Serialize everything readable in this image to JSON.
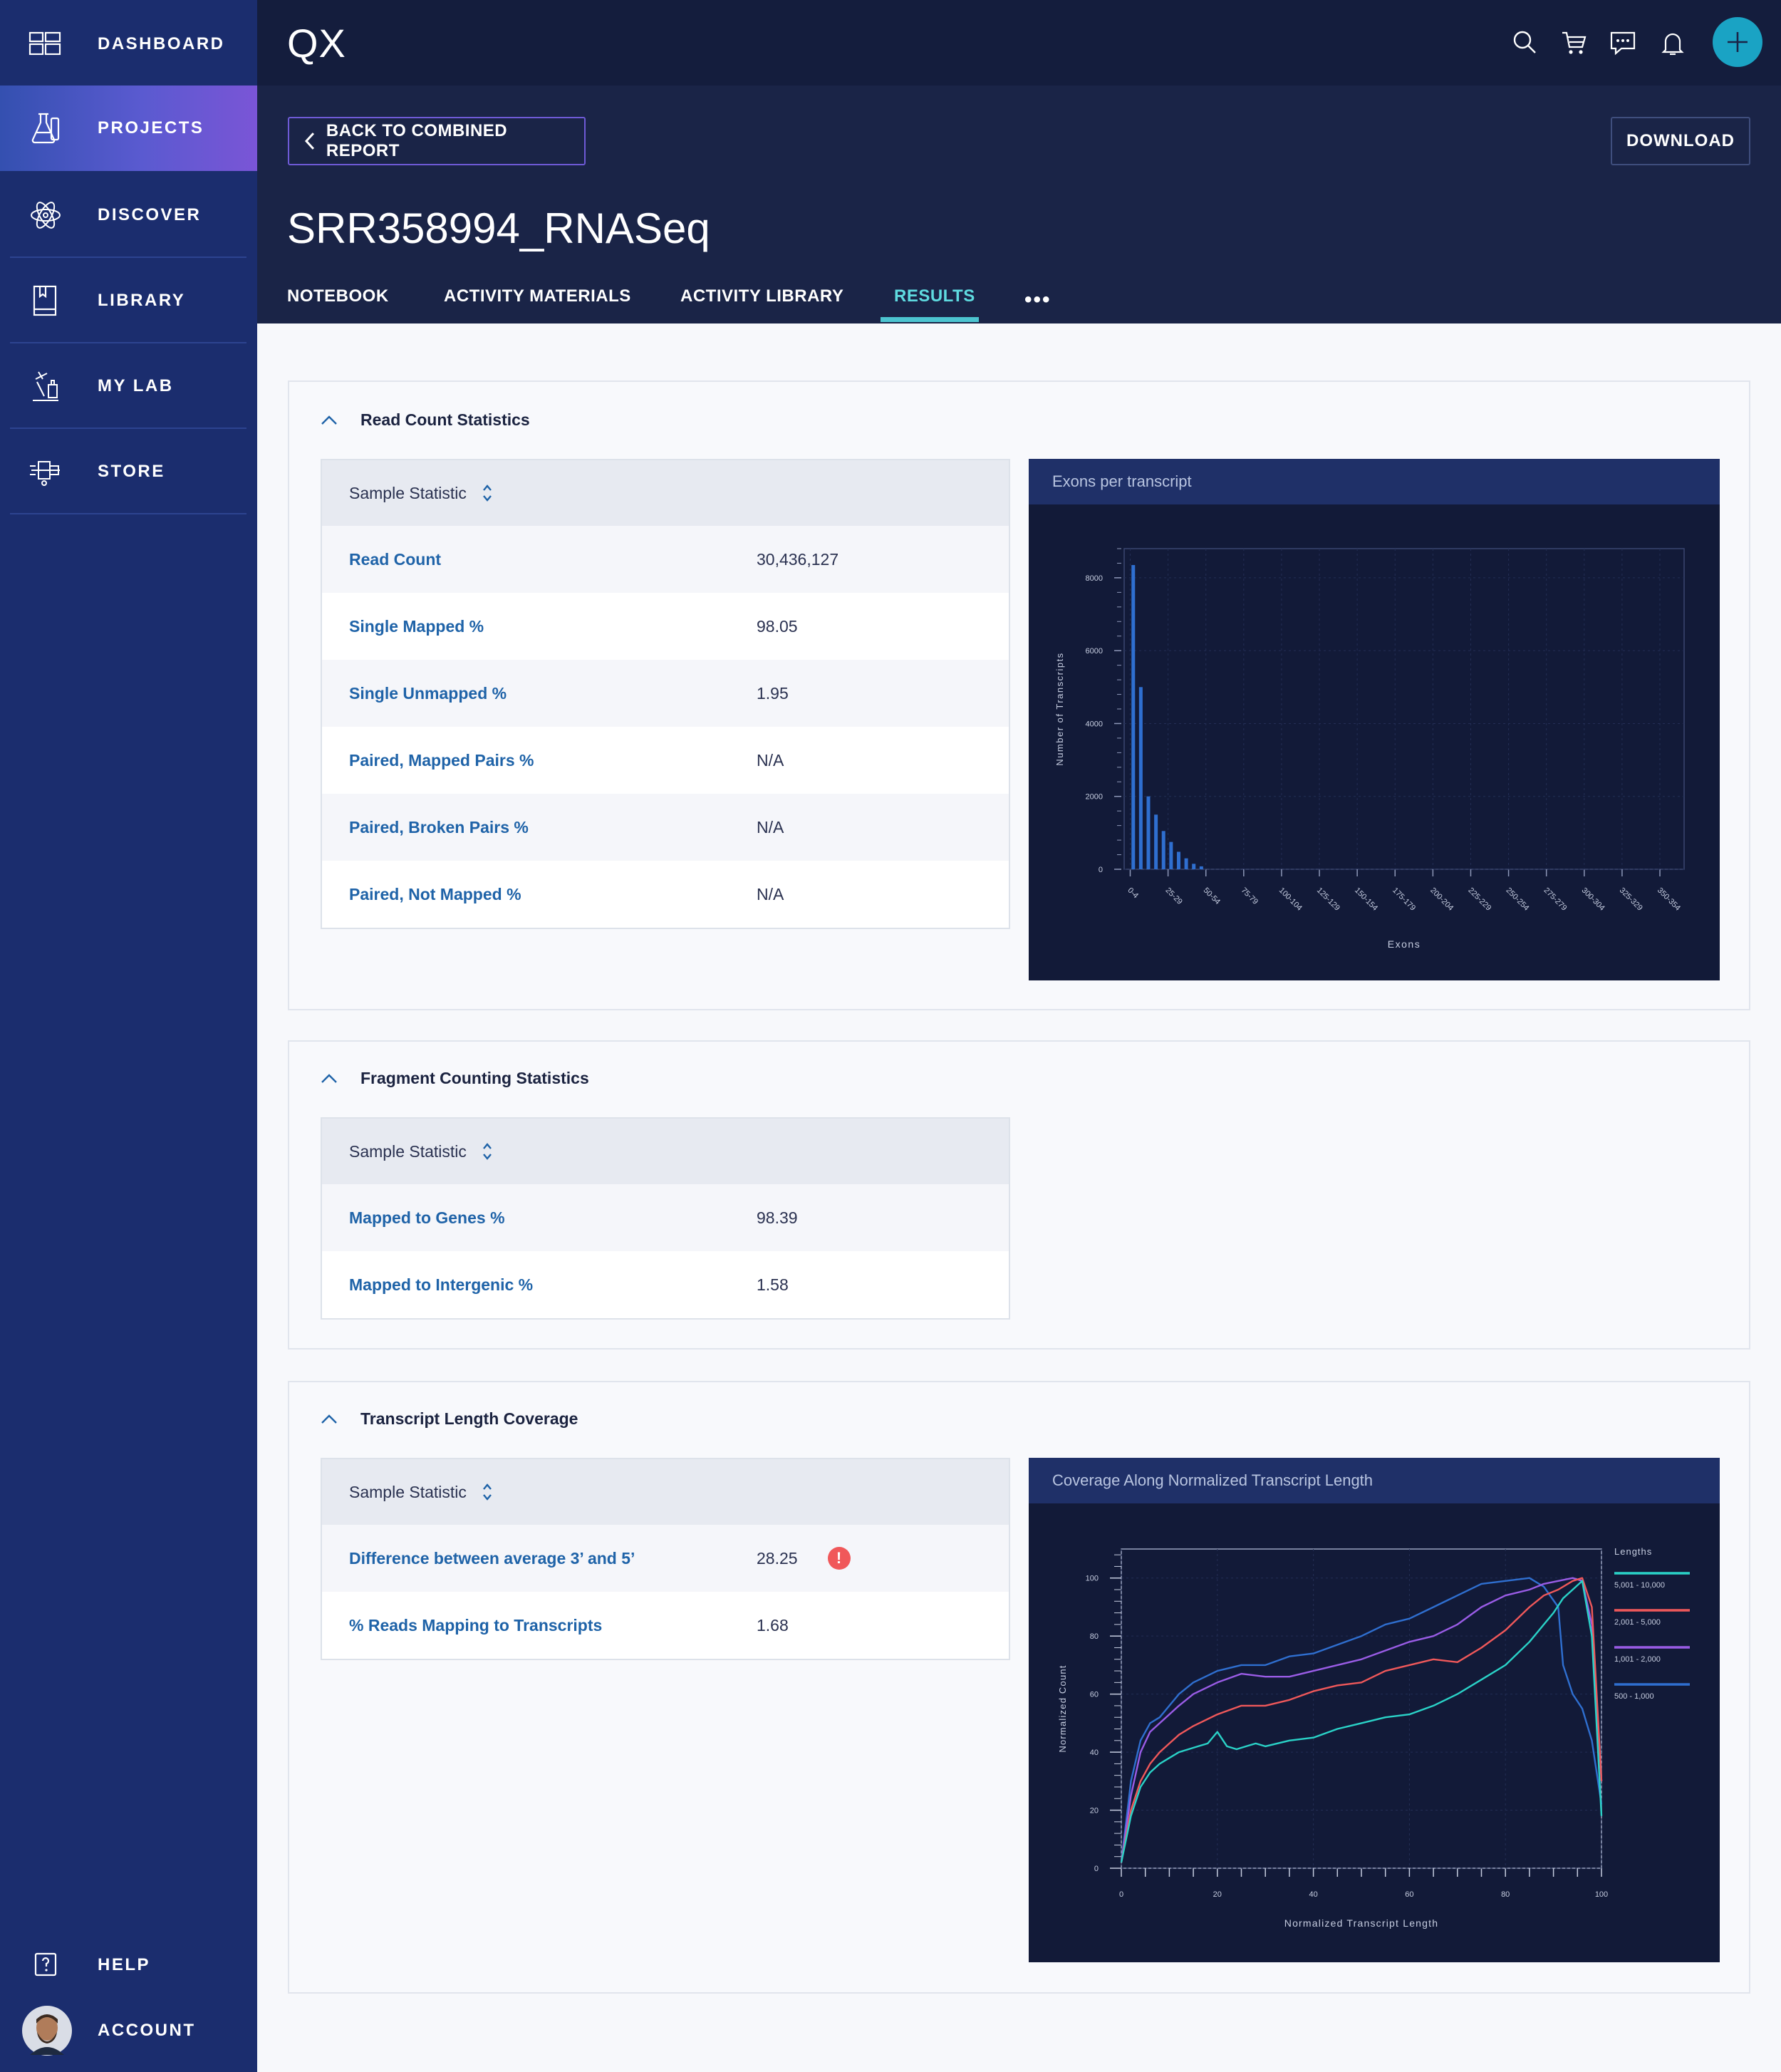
{
  "sidebar": {
    "items": [
      {
        "label": "DASHBOARD",
        "icon": "dashboard-icon",
        "active": false
      },
      {
        "label": "PROJECTS",
        "icon": "flask-icon",
        "active": true
      },
      {
        "label": "DISCOVER",
        "icon": "atom-icon",
        "active": false
      },
      {
        "label": "LIBRARY",
        "icon": "book-icon",
        "active": false
      },
      {
        "label": "MY LAB",
        "icon": "lab-equipment-icon",
        "active": false
      },
      {
        "label": "STORE",
        "icon": "store-icon",
        "active": false
      }
    ],
    "help_label": "HELP",
    "account_label": "ACCOUNT"
  },
  "header": {
    "logo": "QX",
    "icons": [
      "search-icon",
      "cart-icon",
      "chat-icon",
      "bell-icon",
      "plus-icon"
    ]
  },
  "page": {
    "back_label": "BACK TO COMBINED REPORT",
    "download_label": "DOWNLOAD",
    "title": "SRR358994_RNASeq",
    "tabs": [
      {
        "label": "NOTEBOOK",
        "active": false
      },
      {
        "label": "ACTIVITY MATERIALS",
        "active": false
      },
      {
        "label": "ACTIVITY LIBRARY",
        "active": false
      },
      {
        "label": "RESULTS",
        "active": true
      }
    ],
    "more": "•••"
  },
  "sections": [
    {
      "title": "Read Count Statistics",
      "header": "Sample Statistic",
      "rows": [
        {
          "label": "Read Count",
          "value": "30,436,127"
        },
        {
          "label": "Single Mapped %",
          "value": "98.05"
        },
        {
          "label": "Single Unmapped %",
          "value": "1.95"
        },
        {
          "label": "Paired, Mapped Pairs %",
          "value": "N/A"
        },
        {
          "label": "Paired, Broken Pairs %",
          "value": "N/A"
        },
        {
          "label": "Paired, Not Mapped %",
          "value": "N/A"
        }
      ]
    },
    {
      "title": "Fragment Counting Statistics",
      "header": "Sample Statistic",
      "rows": [
        {
          "label": "Mapped to Genes %",
          "value": "98.39"
        },
        {
          "label": "Mapped to Intergenic %",
          "value": "1.58"
        }
      ]
    },
    {
      "title": "Transcript Length Coverage",
      "header": "Sample Statistic",
      "rows": [
        {
          "label": "Difference between average 3’ and 5’",
          "value": "28.25",
          "warning": "!"
        },
        {
          "label": "% Reads Mapping to Transcripts",
          "value": "1.68"
        }
      ]
    }
  ],
  "chart_data": [
    {
      "type": "bar",
      "title": "Exons per transcript",
      "xlabel": "Exons",
      "ylabel": "Number of Transcripts",
      "ylim": [
        0,
        8800
      ],
      "yticks": [
        0,
        2000,
        4000,
        6000,
        8000
      ],
      "tick_labels": [
        "0-4",
        "25-29",
        "50-54",
        "75-79",
        "100-104",
        "125-129",
        "150-154",
        "175-179",
        "200-204",
        "225-229",
        "250-254",
        "275-279",
        "300-304",
        "325-329",
        "350-354"
      ],
      "bar_x": [
        2,
        7,
        12,
        17,
        22,
        27,
        32,
        37,
        42,
        47
      ],
      "values": [
        8350,
        5000,
        2000,
        1500,
        1050,
        750,
        480,
        300,
        150,
        80
      ],
      "xlim": [
        -4,
        366
      ],
      "bar_color": "#2f6fd0"
    },
    {
      "type": "line",
      "title": "Coverage Along Normalized Transcript Length",
      "xlabel": "Normalized Transcript Length",
      "ylabel": "Normalized Count",
      "xlim": [
        0,
        100
      ],
      "ylim": [
        0,
        110
      ],
      "xticks": [
        0,
        20,
        40,
        60,
        80,
        100
      ],
      "yticks": [
        0,
        20,
        40,
        60,
        80,
        100
      ],
      "legend_title": "Lengths",
      "legend_position": "right",
      "series": [
        {
          "name": "5,001 - 10,000",
          "color": "#2ad3c8",
          "x": [
            0,
            2,
            4,
            6,
            8,
            10,
            12,
            14,
            16,
            18,
            20,
            22,
            24,
            26,
            28,
            30,
            35,
            40,
            45,
            50,
            55,
            60,
            65,
            70,
            75,
            80,
            85,
            88,
            90,
            92,
            94,
            96,
            98,
            100
          ],
          "y": [
            2,
            18,
            28,
            33,
            36,
            38,
            40,
            41,
            42,
            43,
            47,
            42,
            41,
            42,
            43,
            42,
            44,
            45,
            48,
            50,
            52,
            53,
            56,
            60,
            65,
            70,
            78,
            84,
            88,
            93,
            96,
            99,
            80,
            18
          ]
        },
        {
          "name": "2,001 - 5,000",
          "color": "#f0585a",
          "x": [
            0,
            2,
            4,
            6,
            8,
            10,
            12,
            15,
            20,
            25,
            30,
            35,
            40,
            45,
            50,
            55,
            60,
            65,
            70,
            75,
            80,
            85,
            88,
            91,
            94,
            96,
            98,
            100
          ],
          "y": [
            2,
            20,
            30,
            36,
            40,
            43,
            46,
            49,
            53,
            56,
            56,
            58,
            61,
            63,
            64,
            68,
            70,
            72,
            71,
            76,
            82,
            90,
            94,
            96,
            99,
            100,
            90,
            30
          ]
        },
        {
          "name": "1,001 - 2,000",
          "color": "#9a5ce6",
          "x": [
            0,
            2,
            4,
            6,
            8,
            10,
            12,
            15,
            20,
            25,
            30,
            35,
            40,
            45,
            50,
            55,
            60,
            65,
            70,
            75,
            80,
            85,
            88,
            91,
            94,
            96,
            98,
            100
          ],
          "y": [
            2,
            25,
            40,
            47,
            50,
            53,
            56,
            60,
            64,
            67,
            66,
            66,
            68,
            70,
            72,
            75,
            78,
            80,
            84,
            90,
            94,
            96,
            98,
            99,
            100,
            99,
            84,
            30
          ]
        },
        {
          "name": "500 - 1,000",
          "color": "#2f6fd0",
          "x": [
            0,
            2,
            4,
            6,
            8,
            10,
            12,
            15,
            20,
            25,
            30,
            35,
            40,
            45,
            50,
            55,
            60,
            65,
            70,
            75,
            80,
            85,
            88,
            91,
            92,
            94,
            96,
            98,
            100
          ],
          "y": [
            2,
            30,
            44,
            50,
            52,
            56,
            60,
            64,
            68,
            70,
            70,
            73,
            74,
            77,
            80,
            84,
            86,
            90,
            94,
            98,
            99,
            100,
            97,
            90,
            70,
            60,
            55,
            44,
            22
          ]
        }
      ]
    }
  ]
}
